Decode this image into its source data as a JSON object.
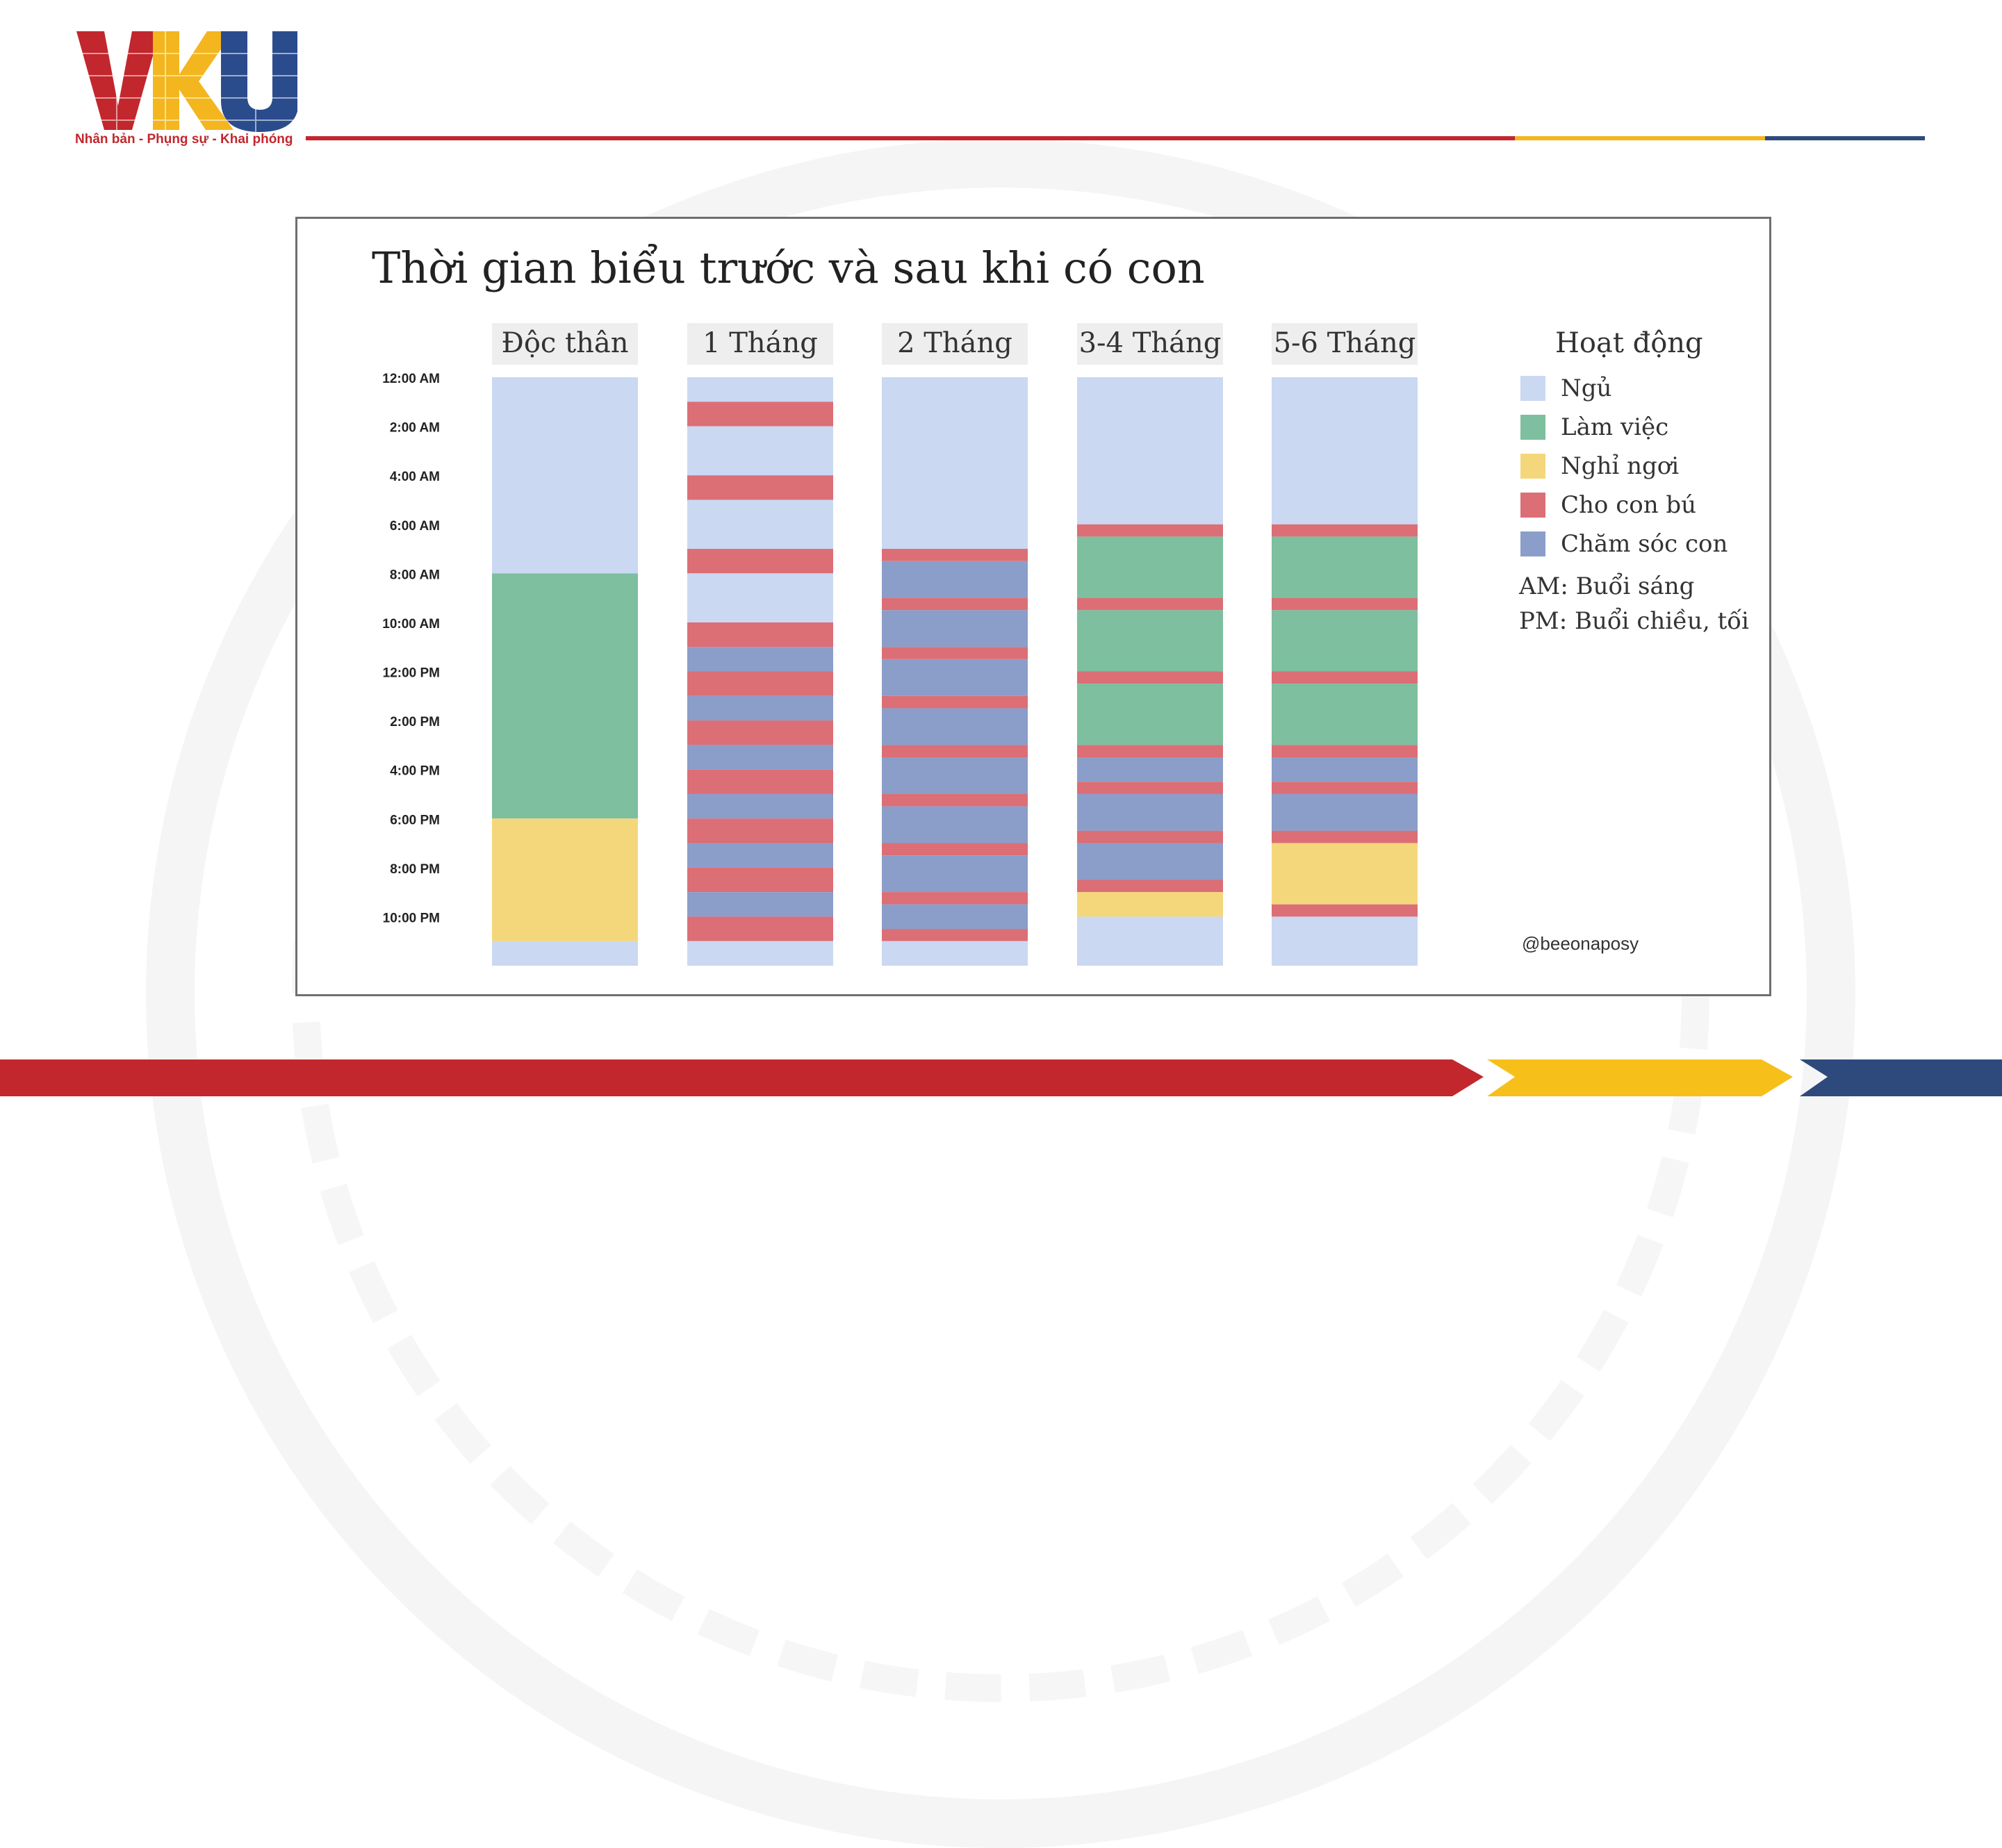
{
  "logo": {
    "text": "VKU",
    "tagline": "Nhân bản - Phụng sự - Khai phóng",
    "colors": {
      "v": "#c1272d",
      "k": "#f3b61f",
      "u": "#2b4c8c"
    }
  },
  "palette": {
    "red": "#c1272d",
    "yellow": "#f7bf1a",
    "navy": "#2e4a7d"
  },
  "chart_data": {
    "type": "stacked-timeline",
    "title": "Thời gian biểu trước và sau khi có con",
    "time_ticks": [
      "12:00 AM",
      "2:00 AM",
      "4:00 AM",
      "6:00 AM",
      "8:00 AM",
      "10:00 AM",
      "12:00 PM",
      "2:00 PM",
      "4:00 PM",
      "6:00 PM",
      "8:00 PM",
      "10:00 PM"
    ],
    "y_range_hours": [
      0,
      24
    ],
    "activities": {
      "ngu": {
        "label": "Ngủ",
        "color": "#cad8f2"
      },
      "lam": {
        "label": "Làm việc",
        "color": "#7dbf9f"
      },
      "nghi": {
        "label": "Nghỉ ngơi",
        "color": "#f5d77b"
      },
      "bu": {
        "label": "Cho con bú",
        "color": "#dc6e76"
      },
      "chamsoc": {
        "label": "Chăm sóc con",
        "color": "#8b9dc9"
      }
    },
    "legend": {
      "title": "Hoạt động",
      "order": [
        "ngu",
        "lam",
        "nghi",
        "bu",
        "chamsoc"
      ],
      "notes": [
        "AM: Buổi sáng",
        "PM: Buổi chiều, tối"
      ],
      "placement": "right"
    },
    "credit": "@beeonaposy",
    "columns": [
      {
        "label": "Độc thân",
        "segments": [
          {
            "a": "ngu",
            "s": 0,
            "e": 8
          },
          {
            "a": "lam",
            "s": 8,
            "e": 18
          },
          {
            "a": "nghi",
            "s": 18,
            "e": 23
          },
          {
            "a": "ngu",
            "s": 23,
            "e": 24
          }
        ]
      },
      {
        "label": "1 Tháng",
        "segments": [
          {
            "a": "ngu",
            "s": 0,
            "e": 1
          },
          {
            "a": "bu",
            "s": 1,
            "e": 2
          },
          {
            "a": "ngu",
            "s": 2,
            "e": 4
          },
          {
            "a": "bu",
            "s": 4,
            "e": 5
          },
          {
            "a": "ngu",
            "s": 5,
            "e": 7
          },
          {
            "a": "bu",
            "s": 7,
            "e": 8
          },
          {
            "a": "ngu",
            "s": 8,
            "e": 10
          },
          {
            "a": "bu",
            "s": 10,
            "e": 11
          },
          {
            "a": "chamsoc",
            "s": 11,
            "e": 12
          },
          {
            "a": "bu",
            "s": 12,
            "e": 13
          },
          {
            "a": "chamsoc",
            "s": 13,
            "e": 14
          },
          {
            "a": "bu",
            "s": 14,
            "e": 15
          },
          {
            "a": "chamsoc",
            "s": 15,
            "e": 16
          },
          {
            "a": "bu",
            "s": 16,
            "e": 17
          },
          {
            "a": "chamsoc",
            "s": 17,
            "e": 18
          },
          {
            "a": "bu",
            "s": 18,
            "e": 19
          },
          {
            "a": "chamsoc",
            "s": 19,
            "e": 20
          },
          {
            "a": "bu",
            "s": 20,
            "e": 21
          },
          {
            "a": "chamsoc",
            "s": 21,
            "e": 22
          },
          {
            "a": "bu",
            "s": 22,
            "e": 23
          },
          {
            "a": "ngu",
            "s": 23,
            "e": 24
          }
        ]
      },
      {
        "label": "2 Tháng",
        "segments": [
          {
            "a": "ngu",
            "s": 0,
            "e": 7
          },
          {
            "a": "bu",
            "s": 7,
            "e": 7.5
          },
          {
            "a": "chamsoc",
            "s": 7.5,
            "e": 9
          },
          {
            "a": "bu",
            "s": 9,
            "e": 9.5
          },
          {
            "a": "chamsoc",
            "s": 9.5,
            "e": 11
          },
          {
            "a": "bu",
            "s": 11,
            "e": 11.5
          },
          {
            "a": "chamsoc",
            "s": 11.5,
            "e": 13
          },
          {
            "a": "bu",
            "s": 13,
            "e": 13.5
          },
          {
            "a": "chamsoc",
            "s": 13.5,
            "e": 15
          },
          {
            "a": "bu",
            "s": 15,
            "e": 15.5
          },
          {
            "a": "chamsoc",
            "s": 15.5,
            "e": 17
          },
          {
            "a": "bu",
            "s": 17,
            "e": 17.5
          },
          {
            "a": "chamsoc",
            "s": 17.5,
            "e": 19
          },
          {
            "a": "bu",
            "s": 19,
            "e": 19.5
          },
          {
            "a": "chamsoc",
            "s": 19.5,
            "e": 21
          },
          {
            "a": "bu",
            "s": 21,
            "e": 21.5
          },
          {
            "a": "chamsoc",
            "s": 21.5,
            "e": 22.5
          },
          {
            "a": "bu",
            "s": 22.5,
            "e": 23
          },
          {
            "a": "ngu",
            "s": 23,
            "e": 24
          }
        ]
      },
      {
        "label": "3-4 Tháng",
        "segments": [
          {
            "a": "ngu",
            "s": 0,
            "e": 6
          },
          {
            "a": "bu",
            "s": 6,
            "e": 6.5
          },
          {
            "a": "lam",
            "s": 6.5,
            "e": 9
          },
          {
            "a": "bu",
            "s": 9,
            "e": 9.5
          },
          {
            "a": "lam",
            "s": 9.5,
            "e": 12
          },
          {
            "a": "bu",
            "s": 12,
            "e": 12.5
          },
          {
            "a": "lam",
            "s": 12.5,
            "e": 15
          },
          {
            "a": "bu",
            "s": 15,
            "e": 15.5
          },
          {
            "a": "chamsoc",
            "s": 15.5,
            "e": 16.5
          },
          {
            "a": "bu",
            "s": 16.5,
            "e": 17
          },
          {
            "a": "chamsoc",
            "s": 17,
            "e": 18.5
          },
          {
            "a": "bu",
            "s": 18.5,
            "e": 19
          },
          {
            "a": "chamsoc",
            "s": 19,
            "e": 20.5
          },
          {
            "a": "bu",
            "s": 20.5,
            "e": 21
          },
          {
            "a": "nghi",
            "s": 21,
            "e": 22
          },
          {
            "a": "ngu",
            "s": 22,
            "e": 24
          }
        ]
      },
      {
        "label": "5-6 Tháng",
        "segments": [
          {
            "a": "ngu",
            "s": 0,
            "e": 6
          },
          {
            "a": "bu",
            "s": 6,
            "e": 6.5
          },
          {
            "a": "lam",
            "s": 6.5,
            "e": 9
          },
          {
            "a": "bu",
            "s": 9,
            "e": 9.5
          },
          {
            "a": "lam",
            "s": 9.5,
            "e": 12
          },
          {
            "a": "bu",
            "s": 12,
            "e": 12.5
          },
          {
            "a": "lam",
            "s": 12.5,
            "e": 15
          },
          {
            "a": "bu",
            "s": 15,
            "e": 15.5
          },
          {
            "a": "chamsoc",
            "s": 15.5,
            "e": 16.5
          },
          {
            "a": "bu",
            "s": 16.5,
            "e": 17
          },
          {
            "a": "chamsoc",
            "s": 17,
            "e": 18.5
          },
          {
            "a": "bu",
            "s": 18.5,
            "e": 19
          },
          {
            "a": "nghi",
            "s": 19,
            "e": 21.5
          },
          {
            "a": "bu",
            "s": 21.5,
            "e": 22
          },
          {
            "a": "ngu",
            "s": 22,
            "e": 24
          }
        ]
      }
    ]
  }
}
